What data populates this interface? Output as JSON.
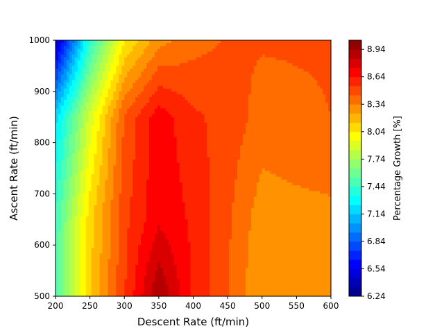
{
  "chart_data": {
    "type": "heatmap",
    "subtype": "filled-contour",
    "title": "",
    "xlabel": "Descent Rate (ft/min)",
    "ylabel": "Ascent Rate (ft/min)",
    "xlim": [
      200,
      600
    ],
    "ylim": [
      500,
      1000
    ],
    "x_ticks": [
      "200",
      "250",
      "300",
      "350",
      "400",
      "450",
      "500",
      "550",
      "600"
    ],
    "y_ticks": [
      "500",
      "600",
      "700",
      "800",
      "900",
      "1000"
    ],
    "x": [
      200,
      250,
      300,
      350,
      400,
      450,
      500,
      550,
      600
    ],
    "y": [
      500,
      650,
      850,
      1000
    ],
    "z": [
      [
        7.48,
        8.12,
        8.53,
        8.94,
        8.62,
        8.44,
        8.24,
        8.25,
        8.27
      ],
      [
        7.46,
        8.1,
        8.51,
        8.72,
        8.62,
        8.46,
        8.28,
        8.3,
        8.31
      ],
      [
        7.2,
        7.88,
        8.45,
        8.7,
        8.56,
        8.5,
        8.4,
        8.42,
        8.44
      ],
      [
        6.4,
        7.4,
        8.03,
        8.3,
        8.4,
        8.45,
        8.45,
        8.45,
        8.45
      ]
    ],
    "colormap": "jet",
    "colorbar": {
      "label": "Percentage Growth [%]",
      "min": 6.24,
      "max": 9.04,
      "ticks": [
        "6.24",
        "6.54",
        "6.84",
        "7.14",
        "7.44",
        "7.74",
        "8.04",
        "8.34",
        "8.64",
        "8.94"
      ]
    },
    "grid": false
  }
}
